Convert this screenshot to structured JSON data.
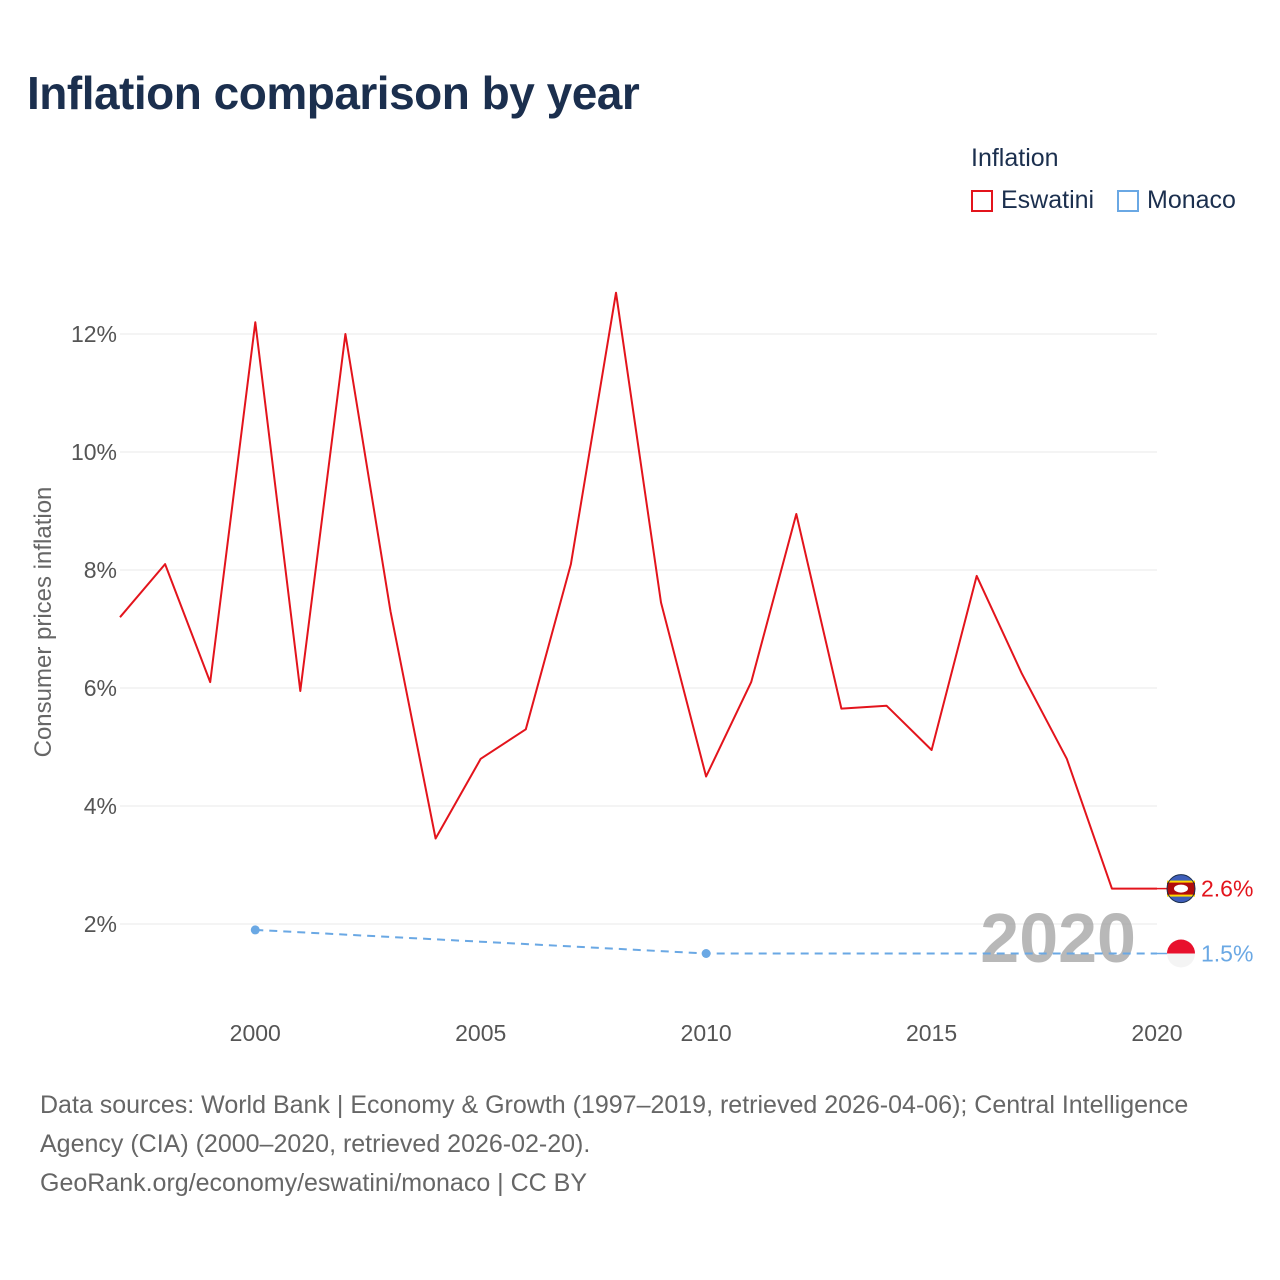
{
  "title": "Inflation comparison by year",
  "legend": {
    "title": "Inflation",
    "items": [
      {
        "label": "Eswatini",
        "color": "#e3141c"
      },
      {
        "label": "Monaco",
        "color": "#6aa8e4"
      }
    ]
  },
  "chart_data": {
    "type": "line",
    "title": "Inflation comparison by year",
    "xlabel": "",
    "ylabel": "Consumer prices inflation",
    "xlim": [
      1997,
      2020
    ],
    "ylim": [
      0.9,
      13.0
    ],
    "x_ticks": [
      2000,
      2005,
      2010,
      2015,
      2020
    ],
    "y_ticks": [
      2,
      4,
      6,
      8,
      10,
      12
    ],
    "y_tick_labels": [
      "2%",
      "4%",
      "6%",
      "8%",
      "10%",
      "12%"
    ],
    "x_tick_labels": [
      "2000",
      "2005",
      "2010",
      "2015",
      "2020"
    ],
    "grid": true,
    "year_watermark": "2020",
    "series": [
      {
        "name": "Eswatini",
        "color": "#e3141c",
        "style": "solid",
        "end_label": "2.6%",
        "x": [
          1997,
          1998,
          1999,
          2000,
          2001,
          2002,
          2003,
          2004,
          2005,
          2006,
          2007,
          2008,
          2009,
          2010,
          2011,
          2012,
          2013,
          2014,
          2015,
          2016,
          2017,
          2018,
          2019,
          2020
        ],
        "values": [
          7.2,
          8.1,
          6.1,
          12.2,
          5.95,
          12.0,
          7.3,
          3.45,
          4.8,
          5.3,
          8.1,
          12.7,
          7.45,
          4.5,
          6.1,
          8.95,
          5.65,
          5.7,
          4.95,
          7.9,
          6.25,
          4.8,
          2.6,
          2.6
        ]
      },
      {
        "name": "Monaco",
        "color": "#6aa8e4",
        "style": "dashed",
        "end_label": "1.5%",
        "x": [
          2000,
          2005,
          2010,
          2020
        ],
        "values": [
          1.9,
          1.7,
          1.5,
          1.5
        ],
        "markers": [
          2000,
          2010
        ]
      }
    ]
  },
  "footer": {
    "sources": "Data sources: World Bank | Economy & Growth (1997–2019, retrieved 2026-04-06); Central Intelligence Agency (CIA) (2000–2020, retrieved 2026-02-20).",
    "credit": "GeoRank.org/economy/eswatini/monaco | CC BY"
  }
}
